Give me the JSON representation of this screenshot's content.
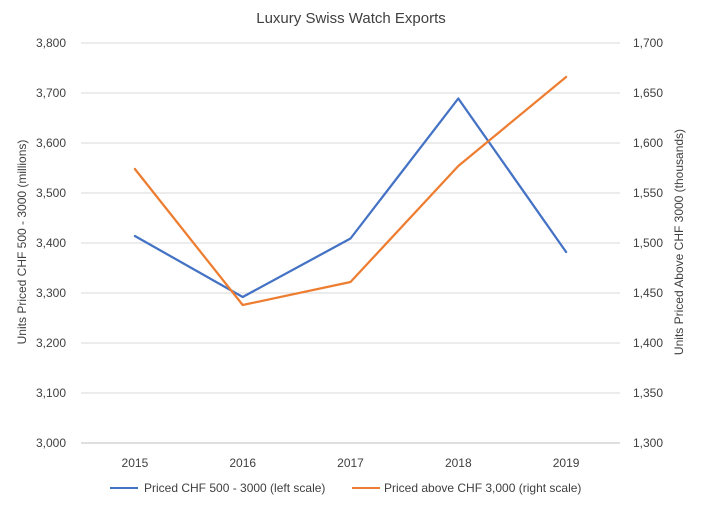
{
  "chart_data": {
    "type": "line",
    "title": "Luxury Swiss Watch Exports",
    "categories": [
      "2015",
      "2016",
      "2017",
      "2018",
      "2019"
    ],
    "y_left": {
      "label": "Units Priced CHF 500 - 3000 (millions)",
      "range": [
        3000,
        3800
      ],
      "ticks": [
        "3,000",
        "3,100",
        "3,200",
        "3,300",
        "3,400",
        "3,500",
        "3,600",
        "3,700",
        "3,800"
      ]
    },
    "y_right": {
      "label": "Units Priced  Above CHF 3000 (thousands)",
      "range": [
        1300,
        1700
      ],
      "ticks": [
        "1,300",
        "1,350",
        "1,400",
        "1,450",
        "1,500",
        "1,550",
        "1,600",
        "1,650",
        "1,700"
      ]
    },
    "series": [
      {
        "name": "Priced CHF 500 -  3000 (left scale)",
        "axis": "left",
        "color": "#4472c4",
        "values": [
          3414,
          3292,
          3409,
          3689,
          3382
        ]
      },
      {
        "name": "Priced above CHF 3,000 (right scale)",
        "axis": "right",
        "color": "#ed7d31",
        "values": [
          1574,
          1438,
          1461,
          1577,
          1666
        ]
      }
    ],
    "grid": true,
    "legend": "bottom"
  }
}
